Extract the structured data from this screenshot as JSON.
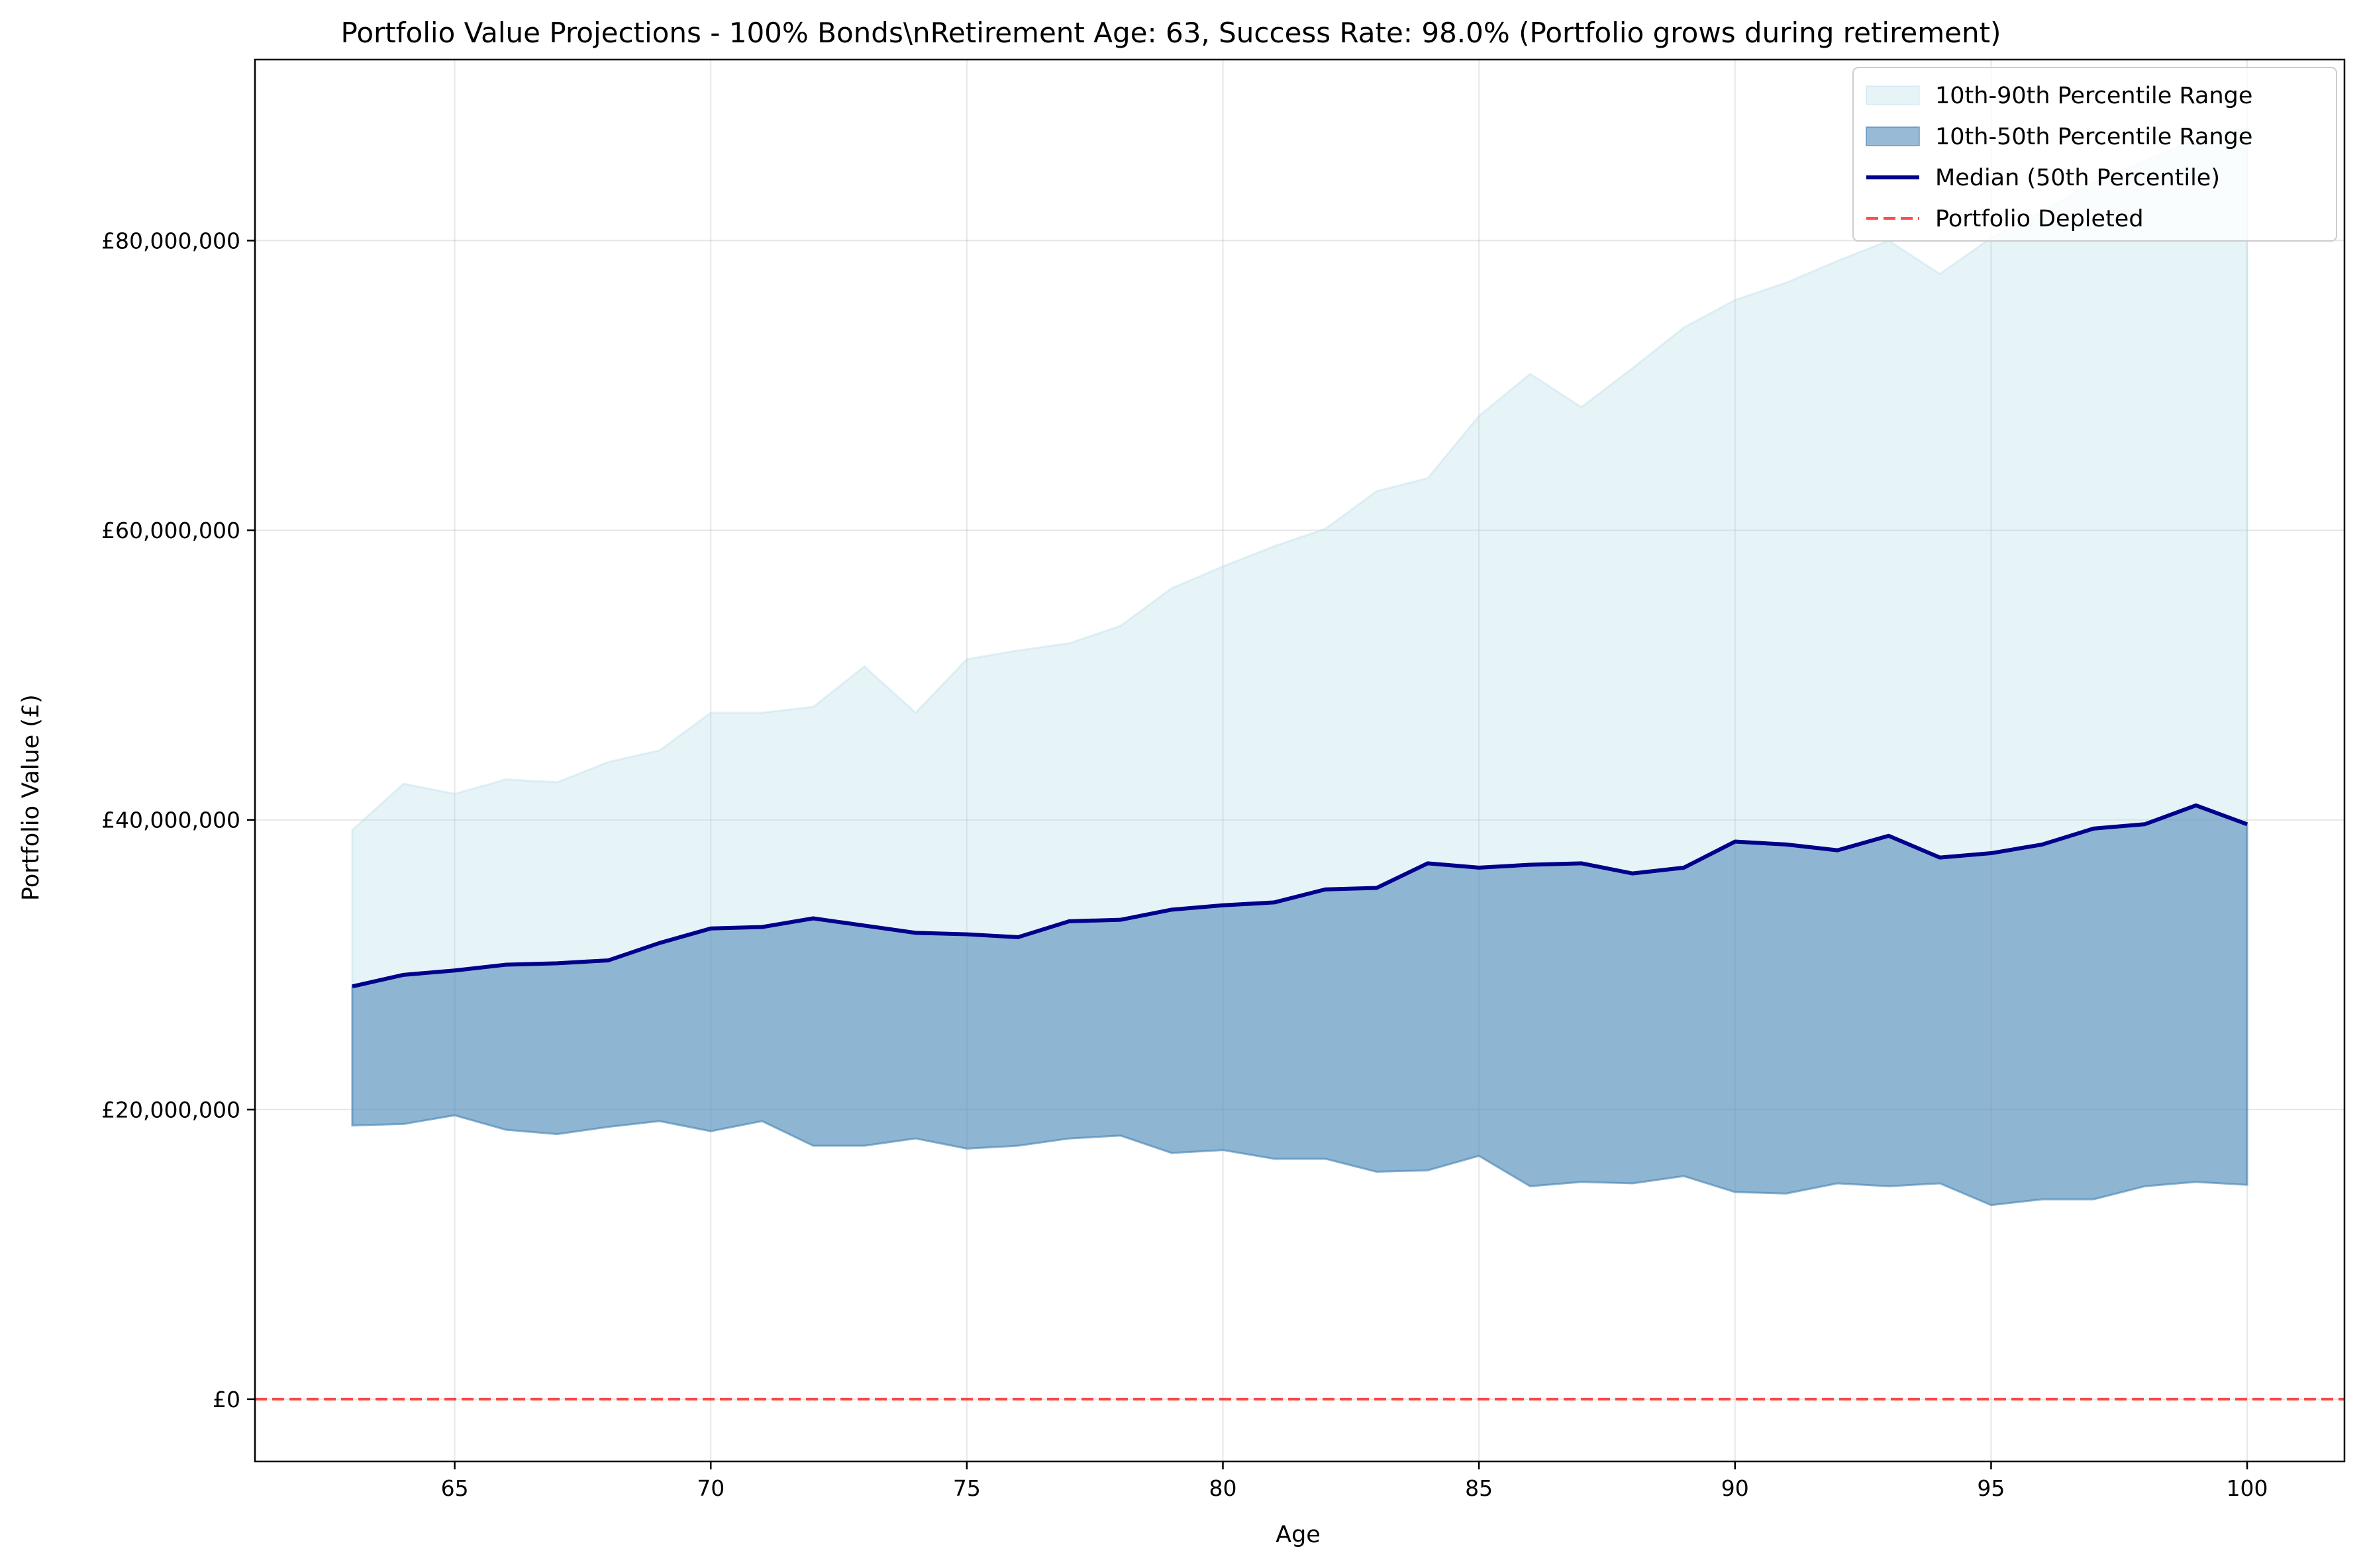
{
  "chart_data": {
    "type": "area",
    "title": "Portfolio Value Projections - 100% Bonds\\nRetirement Age: 63, Success Rate: 98.0% (Portfolio grows during retirement)",
    "xlabel": "Age",
    "ylabel": "Portfolio Value (£)",
    "xlim": [
      61.1,
      101.9
    ],
    "ylim": [
      -4300000,
      92500000
    ],
    "x_ticks": [
      65,
      70,
      75,
      80,
      85,
      90,
      95,
      100
    ],
    "x_tick_labels": [
      "65",
      "70",
      "75",
      "80",
      "85",
      "90",
      "95",
      "100"
    ],
    "y_ticks": [
      0,
      20000000,
      40000000,
      60000000,
      80000000
    ],
    "y_tick_labels": [
      "£0",
      "£20,000,000",
      "£40,000,000",
      "£60,000,000",
      "£80,000,000"
    ],
    "grid": true,
    "legend_position": "top-right",
    "x": [
      63,
      64,
      65,
      66,
      67,
      68,
      69,
      70,
      71,
      72,
      73,
      74,
      75,
      76,
      77,
      78,
      79,
      80,
      81,
      82,
      83,
      84,
      85,
      86,
      87,
      88,
      89,
      90,
      91,
      92,
      93,
      94,
      95,
      96,
      97,
      98,
      99,
      100
    ],
    "series": [
      {
        "name": "10th-90th Percentile Range",
        "kind": "band",
        "color": "#add8e6",
        "lower": [
          18900000,
          19000000,
          19600000,
          18600000,
          18300000,
          18800000,
          19200000,
          18500000,
          19200000,
          17500000,
          17500000,
          18000000,
          17300000,
          17500000,
          18000000,
          18200000,
          17000000,
          17200000,
          16600000,
          16600000,
          15700000,
          15800000,
          16800000,
          14700000,
          15000000,
          14900000,
          15400000,
          14300000,
          14200000,
          14900000,
          14700000,
          14900000,
          13400000,
          13800000,
          13800000,
          14700000,
          15000000,
          14800000
        ],
        "upper": [
          39300000,
          42500000,
          41800000,
          42800000,
          42600000,
          44000000,
          44800000,
          47400000,
          47400000,
          47800000,
          50600000,
          47400000,
          51100000,
          51700000,
          52200000,
          53400000,
          56000000,
          57500000,
          58900000,
          60100000,
          62700000,
          63600000,
          67900000,
          70800000,
          68500000,
          71200000,
          74000000,
          75900000,
          77100000,
          78600000,
          80000000,
          77700000,
          80200000,
          82000000,
          84000000,
          85500000,
          87000000,
          87800000
        ]
      },
      {
        "name": "10th-50th Percentile Range",
        "kind": "band",
        "color": "#4682b4",
        "lower": [
          18900000,
          19000000,
          19600000,
          18600000,
          18300000,
          18800000,
          19200000,
          18500000,
          19200000,
          17500000,
          17500000,
          18000000,
          17300000,
          17500000,
          18000000,
          18200000,
          17000000,
          17200000,
          16600000,
          16600000,
          15700000,
          15800000,
          16800000,
          14700000,
          15000000,
          14900000,
          15400000,
          14300000,
          14200000,
          14900000,
          14700000,
          14900000,
          13400000,
          13800000,
          13800000,
          14700000,
          15000000,
          14800000
        ],
        "upper": [
          28500000,
          29300000,
          29600000,
          30000000,
          30100000,
          30300000,
          31500000,
          32500000,
          32600000,
          33200000,
          32700000,
          32200000,
          32100000,
          31900000,
          33000000,
          33100000,
          33800000,
          34100000,
          34300000,
          35200000,
          35300000,
          37000000,
          36700000,
          36900000,
          37000000,
          36300000,
          36700000,
          38500000,
          38300000,
          37900000,
          38900000,
          37400000,
          37700000,
          38300000,
          39400000,
          39700000,
          41000000,
          39700000
        ]
      },
      {
        "name": "Median (50th Percentile)",
        "kind": "line",
        "color": "#00008b",
        "values": [
          28500000,
          29300000,
          29600000,
          30000000,
          30100000,
          30300000,
          31500000,
          32500000,
          32600000,
          33200000,
          32700000,
          32200000,
          32100000,
          31900000,
          33000000,
          33100000,
          33800000,
          34100000,
          34300000,
          35200000,
          35300000,
          37000000,
          36700000,
          36900000,
          37000000,
          36300000,
          36700000,
          38500000,
          38300000,
          37900000,
          38900000,
          37400000,
          37700000,
          38300000,
          39400000,
          39700000,
          41000000,
          39700000
        ]
      },
      {
        "name": "Portfolio Depleted",
        "kind": "hline",
        "color": "#ff0000",
        "y": 0
      }
    ]
  }
}
